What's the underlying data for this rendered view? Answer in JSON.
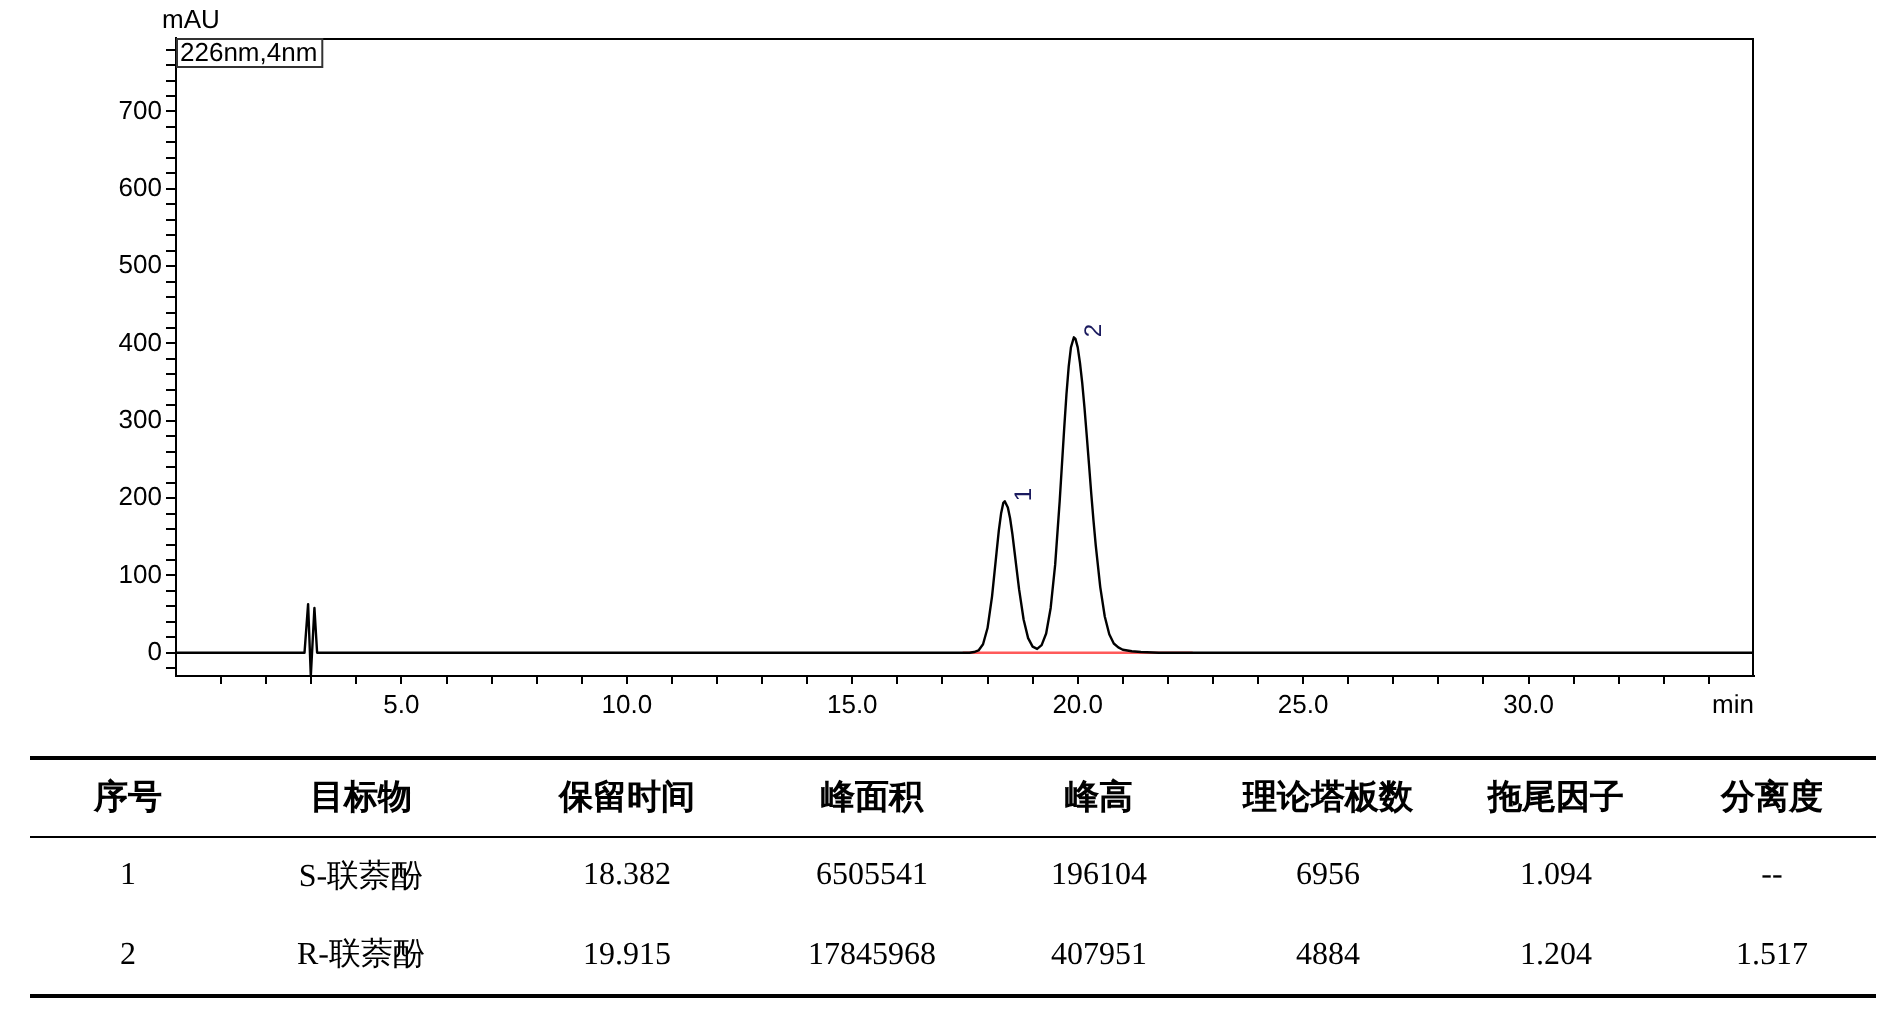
{
  "chart_data": [
    {
      "type": "line",
      "xlabel": "min",
      "ylabel": "mAU",
      "xlim": [
        0,
        35
      ],
      "ylim": [
        -30,
        795
      ],
      "xticks": [
        {
          "value": 1,
          "label": null
        },
        {
          "value": 2,
          "label": null
        },
        {
          "value": 3,
          "label": null
        },
        {
          "value": 4,
          "label": null
        },
        {
          "value": 5,
          "label": "5.0"
        },
        {
          "value": 6,
          "label": null
        },
        {
          "value": 7,
          "label": null
        },
        {
          "value": 8,
          "label": null
        },
        {
          "value": 9,
          "label": null
        },
        {
          "value": 10,
          "label": "10.0"
        },
        {
          "value": 11,
          "label": null
        },
        {
          "value": 12,
          "label": null
        },
        {
          "value": 13,
          "label": null
        },
        {
          "value": 14,
          "label": null
        },
        {
          "value": 15,
          "label": "15.0"
        },
        {
          "value": 16,
          "label": null
        },
        {
          "value": 17,
          "label": null
        },
        {
          "value": 18,
          "label": null
        },
        {
          "value": 19,
          "label": null
        },
        {
          "value": 20,
          "label": "20.0"
        },
        {
          "value": 21,
          "label": null
        },
        {
          "value": 22,
          "label": null
        },
        {
          "value": 23,
          "label": null
        },
        {
          "value": 24,
          "label": null
        },
        {
          "value": 25,
          "label": "25.0"
        },
        {
          "value": 26,
          "label": null
        },
        {
          "value": 27,
          "label": null
        },
        {
          "value": 28,
          "label": null
        },
        {
          "value": 29,
          "label": null
        },
        {
          "value": 30,
          "label": "30.0"
        },
        {
          "value": 31,
          "label": null
        },
        {
          "value": 32,
          "label": null
        },
        {
          "value": 33,
          "label": null
        },
        {
          "value": 34,
          "label": null
        }
      ],
      "yticks": [
        {
          "value": -20,
          "label": null
        },
        0,
        {
          "value": 20,
          "label": null
        },
        {
          "value": 40,
          "label": null
        },
        {
          "value": 60,
          "label": null
        },
        {
          "value": 80,
          "label": null
        },
        100,
        {
          "value": 120,
          "label": null
        },
        {
          "value": 140,
          "label": null
        },
        {
          "value": 160,
          "label": null
        },
        {
          "value": 180,
          "label": null
        },
        200,
        {
          "value": 220,
          "label": null
        },
        {
          "value": 240,
          "label": null
        },
        {
          "value": 260,
          "label": null
        },
        {
          "value": 280,
          "label": null
        },
        300,
        {
          "value": 320,
          "label": null
        },
        {
          "value": 340,
          "label": null
        },
        {
          "value": 360,
          "label": null
        },
        {
          "value": 380,
          "label": null
        },
        400,
        {
          "value": 420,
          "label": null
        },
        {
          "value": 440,
          "label": null
        },
        {
          "value": 460,
          "label": null
        },
        {
          "value": 480,
          "label": null
        },
        500,
        {
          "value": 520,
          "label": null
        },
        {
          "value": 540,
          "label": null
        },
        {
          "value": 560,
          "label": null
        },
        {
          "value": 580,
          "label": null
        },
        600,
        {
          "value": 620,
          "label": null
        },
        {
          "value": 640,
          "label": null
        },
        {
          "value": 660,
          "label": null
        },
        {
          "value": 680,
          "label": null
        },
        700,
        {
          "value": 720,
          "label": null
        },
        {
          "value": 740,
          "label": null
        },
        {
          "value": 760,
          "label": null
        },
        {
          "value": 780,
          "label": null
        }
      ],
      "series": [
        {
          "color": "#000000",
          "x": [
            0,
            2.85,
            2.93,
            2.99,
            3.07,
            3.13,
            17.4,
            17.6,
            17.7,
            17.8,
            17.9,
            18.0,
            18.1,
            18.2,
            18.25,
            18.3,
            18.35,
            18.382,
            18.45,
            18.5,
            18.55,
            18.6,
            18.7,
            18.8,
            18.9,
            19.0,
            19.1,
            19.2,
            19.3,
            19.4,
            19.5,
            19.6,
            19.7,
            19.75,
            19.8,
            19.85,
            19.915,
            19.95,
            20.0,
            20.05,
            20.1,
            20.15,
            20.2,
            20.25,
            20.3,
            20.35,
            20.4,
            20.5,
            20.6,
            20.7,
            20.8,
            20.9,
            21.0,
            21.2,
            21.4,
            21.8,
            35
          ],
          "values": [
            0,
            0,
            63,
            -30,
            58,
            0,
            0,
            0,
            1,
            3,
            11,
            32,
            73,
            130,
            158,
            180,
            194,
            196,
            188,
            174,
            154,
            130,
            82,
            43,
            19,
            8,
            5,
            10,
            25,
            58,
            114,
            196,
            290,
            334,
            370,
            395,
            408,
            406,
            395,
            375,
            349,
            317,
            281,
            244,
            206,
            171,
            139,
            85,
            47,
            24,
            12,
            7,
            4,
            2,
            1,
            0,
            0
          ]
        },
        {
          "color": "#ff5a5a",
          "x": [
            17.45,
            22.55
          ],
          "values": [
            0,
            0
          ]
        }
      ],
      "annotations": [
        "226nm,4nm",
        {
          "text": "1",
          "x": 18.382,
          "y": 196
        },
        {
          "text": "2",
          "x": 19.915,
          "y": 408
        }
      ]
    },
    {
      "type": "other",
      "categories": [
        "序号",
        "目标物",
        "保留时间",
        "峰面积",
        "峰高",
        "理论塔板数",
        "拖尾因子",
        "分离度"
      ],
      "annotations": [
        "1",
        "S-联萘酚",
        "18.382",
        "6505541",
        "196104",
        "6956",
        "1.094",
        "--",
        "2",
        "R-联萘酚",
        "19.915",
        "17845968",
        "407951",
        "4884",
        "1.204",
        "1.517"
      ]
    }
  ]
}
